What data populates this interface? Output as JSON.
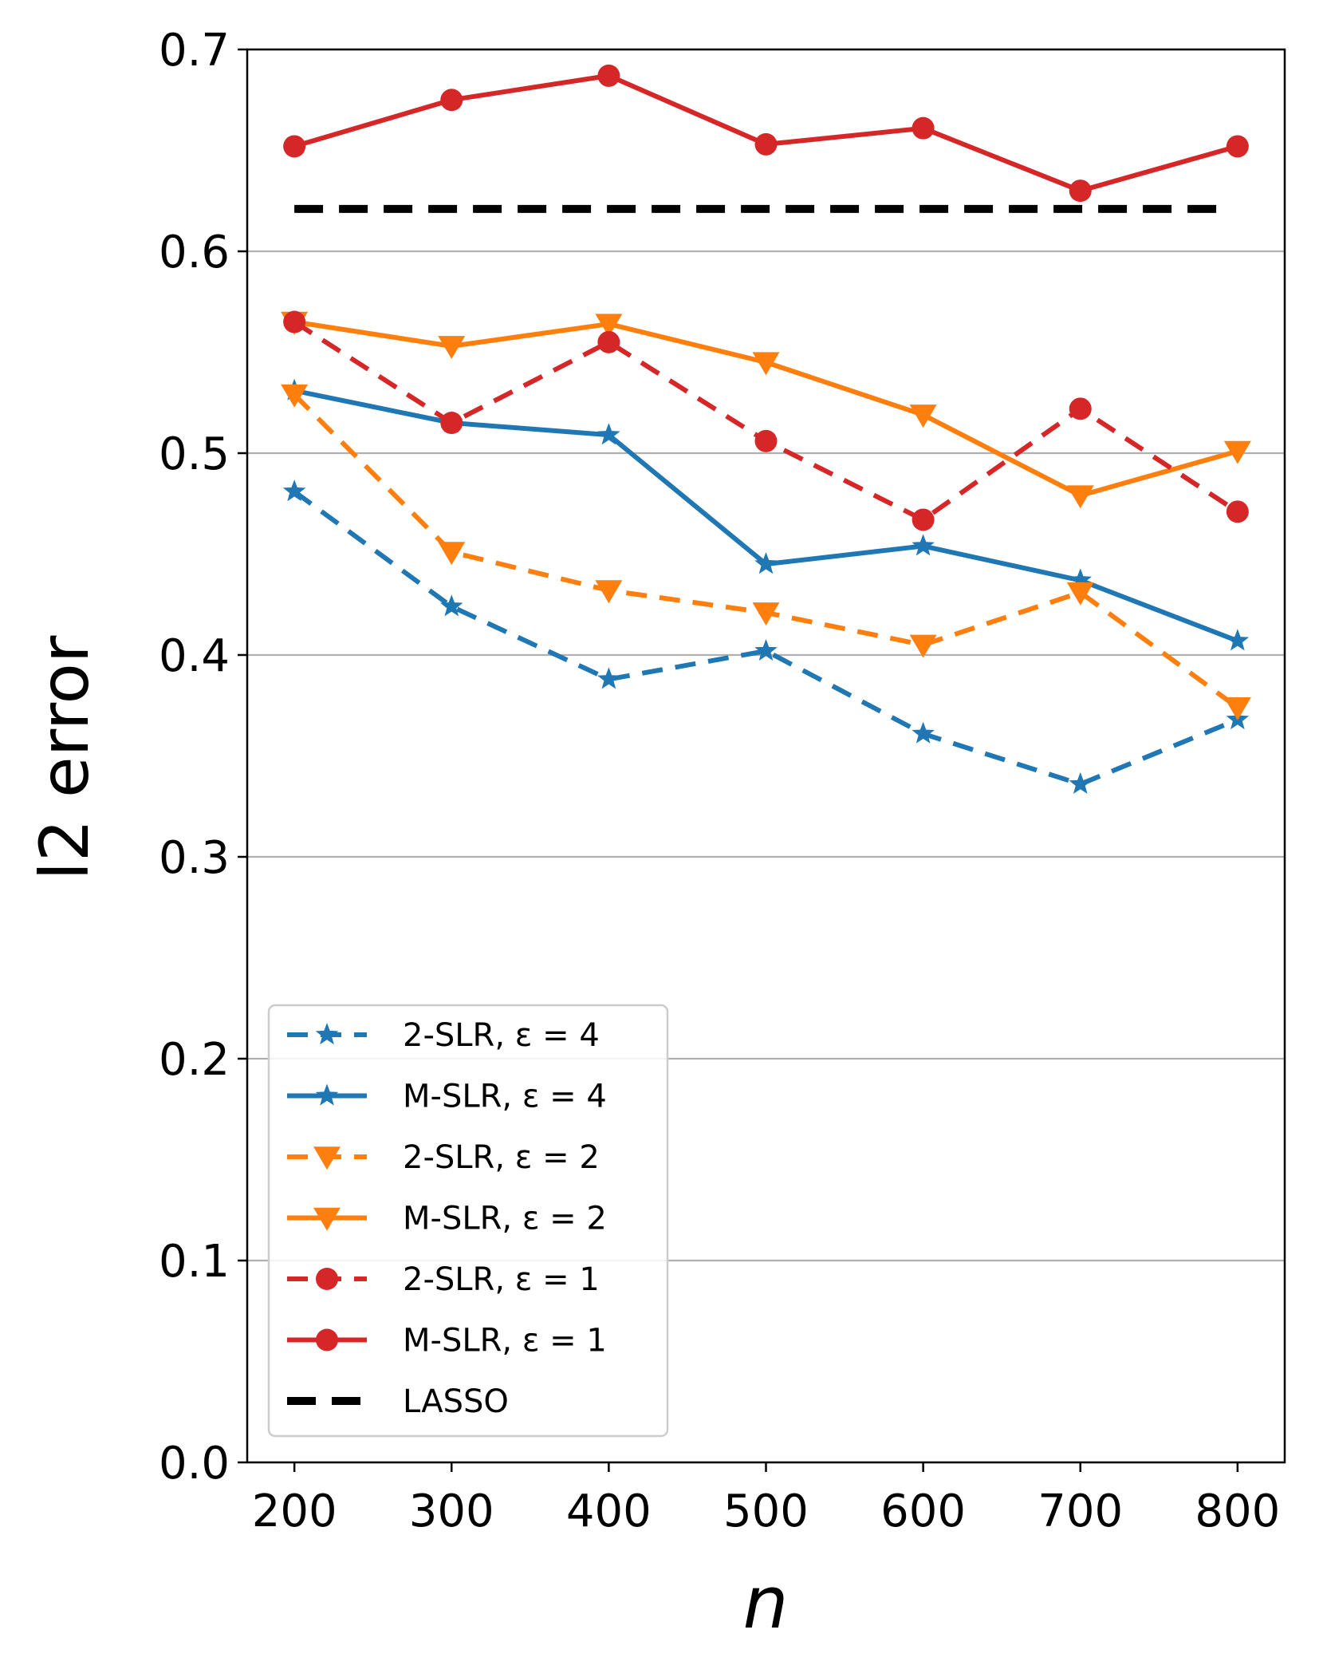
{
  "chart_data": {
    "type": "line",
    "xlabel": "n",
    "ylabel": "l2 error",
    "xlim": [
      170,
      830
    ],
    "ylim": [
      0.0,
      0.7
    ],
    "grid": "horizontal",
    "legend_position": "lower-left",
    "x_ticks": [
      "200",
      "300",
      "400",
      "500",
      "600",
      "700",
      "800"
    ],
    "y_ticks": [
      "0.0",
      "0.1",
      "0.2",
      "0.3",
      "0.4",
      "0.5",
      "0.6",
      "0.7"
    ],
    "x": [
      200,
      300,
      400,
      500,
      600,
      700,
      800
    ],
    "series": [
      {
        "name": "2-SLR, ε = 4",
        "color": "#1f77b4",
        "dashed": true,
        "marker": "star",
        "values": [
          0.481,
          0.424,
          0.388,
          0.402,
          0.361,
          0.336,
          0.368
        ]
      },
      {
        "name": "M-SLR, ε = 4",
        "color": "#1f77b4",
        "dashed": false,
        "marker": "star",
        "values": [
          0.531,
          0.515,
          0.509,
          0.445,
          0.454,
          0.437,
          0.407
        ]
      },
      {
        "name": "2-SLR, ε = 2",
        "color": "#ff7f0e",
        "dashed": true,
        "marker": "triangle-down",
        "values": [
          0.529,
          0.451,
          0.432,
          0.421,
          0.405,
          0.431,
          0.374
        ]
      },
      {
        "name": "M-SLR, ε = 2",
        "color": "#ff7f0e",
        "dashed": false,
        "marker": "triangle-down",
        "values": [
          0.565,
          0.553,
          0.564,
          0.545,
          0.519,
          0.479,
          0.501
        ]
      },
      {
        "name": "2-SLR, ε = 1",
        "color": "#d62728",
        "dashed": true,
        "marker": "circle",
        "values": [
          0.565,
          0.515,
          0.555,
          0.506,
          0.467,
          0.522,
          0.471
        ]
      },
      {
        "name": "M-SLR, ε = 1",
        "color": "#d62728",
        "dashed": false,
        "marker": "circle",
        "values": [
          0.652,
          0.675,
          0.687,
          0.653,
          0.661,
          0.63,
          0.652
        ]
      },
      {
        "name": "LASSO",
        "color": "#000000",
        "dashed": true,
        "marker": "none",
        "values": [
          0.621,
          0.621,
          0.621,
          0.621,
          0.621,
          0.621,
          0.621
        ]
      }
    ]
  }
}
